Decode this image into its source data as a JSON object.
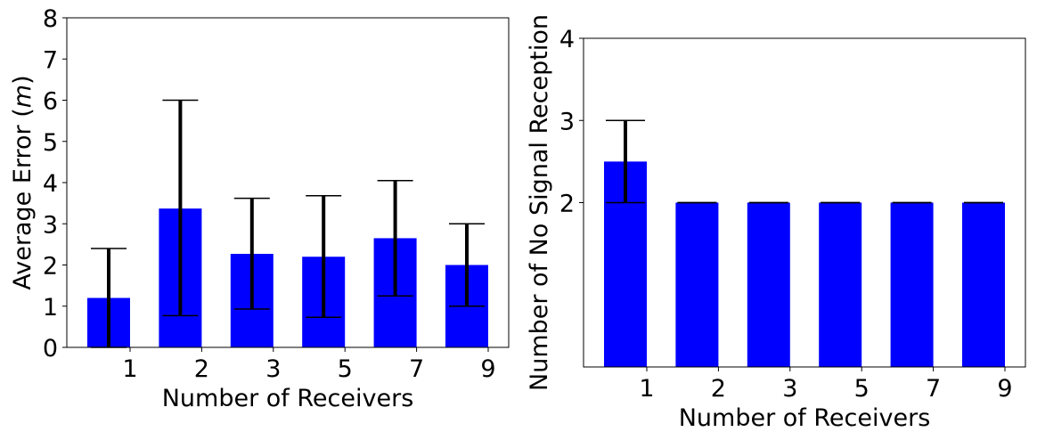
{
  "chart_data": [
    {
      "type": "bar",
      "categories": [
        "1",
        "2",
        "3",
        "5",
        "7",
        "9"
      ],
      "values": [
        1.2,
        3.37,
        2.27,
        2.2,
        2.65,
        2.0
      ],
      "error_low": [
        0.0,
        0.77,
        0.93,
        0.73,
        1.25,
        1.0
      ],
      "error_high": [
        2.4,
        6.0,
        3.62,
        3.68,
        4.05,
        3.0
      ],
      "title": "",
      "xlabel": "Number of Receivers",
      "ylabel_parts": [
        "Average Error (",
        "m",
        ")"
      ],
      "ylim": [
        0,
        8
      ],
      "yticks": [
        "0",
        "1",
        "2",
        "3",
        "4",
        "5",
        "6",
        "7",
        "8"
      ],
      "bar_color": "#0000ff",
      "grid": false
    },
    {
      "type": "bar",
      "categories": [
        "1",
        "2",
        "3",
        "5",
        "7",
        "9"
      ],
      "values": [
        2.5,
        2.0,
        2.0,
        2.0,
        2.0,
        2.0
      ],
      "error_low": [
        2.0,
        2.0,
        2.0,
        2.0,
        2.0,
        2.0
      ],
      "error_high": [
        3.0,
        2.0,
        2.0,
        2.0,
        2.0,
        2.0
      ],
      "title": "",
      "xlabel": "Number of Receivers",
      "ylabel": "Number of No Signal Reception",
      "ylim": [
        0,
        4
      ],
      "yticks": [
        "2",
        "3",
        "4"
      ],
      "bar_color": "#0000ff",
      "grid": false
    }
  ]
}
